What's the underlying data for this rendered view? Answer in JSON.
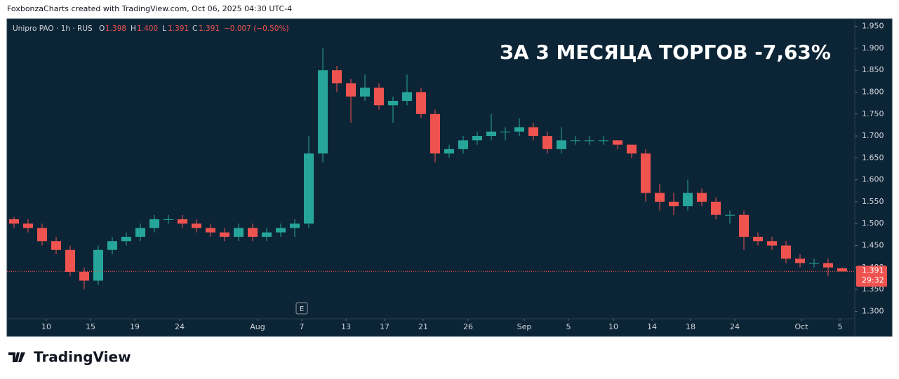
{
  "attribution": "FoxbonzaCharts created with TradingView.com, Oct 06, 2025 04:30 UTC-4",
  "legend": {
    "symbol": "Unipro PAO · 1h · RUS",
    "o_label": "O",
    "o": "1.398",
    "h_label": "H",
    "h": "1.400",
    "l_label": "L",
    "l": "1.391",
    "c_label": "C",
    "c": "1.391",
    "change": "−0.007 (−0.50%)"
  },
  "logo": "TradingView",
  "earnings_marker": "E",
  "countdown": "29:32",
  "last_price_label": "1.391",
  "chart_data": {
    "type": "candlestick",
    "annotation": "ЗА 3 МЕСЯЦА ТОРГОВ -7,63%",
    "up_color": "#26a69a",
    "down_color": "#ef5350",
    "open": [
      1.51,
      1.5,
      1.49,
      1.46,
      1.44,
      1.39,
      1.37,
      1.44,
      1.46,
      1.47,
      1.49,
      1.51,
      1.51,
      1.5,
      1.49,
      1.48,
      1.47,
      1.49,
      1.47,
      1.48,
      1.49,
      1.5,
      1.66,
      1.85,
      1.82,
      1.79,
      1.81,
      1.77,
      1.78,
      1.8,
      1.75,
      1.66,
      1.67,
      1.69,
      1.7,
      1.71,
      1.71,
      1.72,
      1.7,
      1.67,
      1.69,
      1.69,
      1.69,
      1.69,
      1.68,
      1.66,
      1.57,
      1.55,
      1.54,
      1.57,
      1.55,
      1.52,
      1.52,
      1.47,
      1.46,
      1.45,
      1.42,
      1.41,
      1.41,
      1.398
    ],
    "high": [
      1.515,
      1.51,
      1.5,
      1.47,
      1.45,
      1.4,
      1.45,
      1.47,
      1.48,
      1.5,
      1.52,
      1.52,
      1.52,
      1.51,
      1.5,
      1.49,
      1.5,
      1.5,
      1.49,
      1.5,
      1.51,
      1.7,
      1.9,
      1.86,
      1.83,
      1.84,
      1.82,
      1.79,
      1.84,
      1.81,
      1.76,
      1.68,
      1.7,
      1.71,
      1.75,
      1.72,
      1.74,
      1.73,
      1.71,
      1.72,
      1.7,
      1.7,
      1.7,
      1.69,
      1.68,
      1.67,
      1.59,
      1.57,
      1.6,
      1.58,
      1.56,
      1.53,
      1.53,
      1.48,
      1.47,
      1.46,
      1.43,
      1.42,
      1.42,
      1.4
    ],
    "low": [
      1.49,
      1.48,
      1.45,
      1.43,
      1.38,
      1.35,
      1.36,
      1.43,
      1.45,
      1.46,
      1.48,
      1.5,
      1.49,
      1.48,
      1.47,
      1.46,
      1.46,
      1.46,
      1.46,
      1.47,
      1.47,
      1.49,
      1.64,
      1.8,
      1.73,
      1.78,
      1.76,
      1.73,
      1.77,
      1.74,
      1.64,
      1.65,
      1.66,
      1.68,
      1.69,
      1.69,
      1.7,
      1.69,
      1.66,
      1.66,
      1.68,
      1.68,
      1.68,
      1.67,
      1.65,
      1.55,
      1.53,
      1.52,
      1.53,
      1.54,
      1.51,
      1.5,
      1.44,
      1.45,
      1.44,
      1.41,
      1.4,
      1.4,
      1.38,
      1.391
    ],
    "close": [
      1.5,
      1.49,
      1.46,
      1.44,
      1.39,
      1.37,
      1.44,
      1.46,
      1.47,
      1.49,
      1.51,
      1.51,
      1.5,
      1.49,
      1.48,
      1.47,
      1.49,
      1.47,
      1.48,
      1.49,
      1.5,
      1.66,
      1.85,
      1.82,
      1.79,
      1.81,
      1.77,
      1.78,
      1.8,
      1.75,
      1.66,
      1.67,
      1.69,
      1.7,
      1.71,
      1.71,
      1.72,
      1.7,
      1.67,
      1.69,
      1.69,
      1.69,
      1.69,
      1.68,
      1.66,
      1.57,
      1.55,
      1.54,
      1.57,
      1.55,
      1.52,
      1.52,
      1.47,
      1.46,
      1.45,
      1.42,
      1.41,
      1.41,
      1.4,
      1.391
    ],
    "xlim": [
      -0.5,
      59.5
    ],
    "xticks": [
      {
        "value": 2.3,
        "label": "10"
      },
      {
        "value": 5.45,
        "label": "15"
      },
      {
        "value": 8.6,
        "label": "19"
      },
      {
        "value": 11.8,
        "label": "24"
      },
      {
        "value": 17.35,
        "label": "Aug"
      },
      {
        "value": 20.5,
        "label": "7"
      },
      {
        "value": 23.65,
        "label": "13"
      },
      {
        "value": 26.4,
        "label": "17"
      },
      {
        "value": 29.15,
        "label": "21"
      },
      {
        "value": 32.35,
        "label": "26"
      },
      {
        "value": 36.35,
        "label": "Sep"
      },
      {
        "value": 39.5,
        "label": "5"
      },
      {
        "value": 42.7,
        "label": "10"
      },
      {
        "value": 45.45,
        "label": "14"
      },
      {
        "value": 48.2,
        "label": "18"
      },
      {
        "value": 51.35,
        "label": "24"
      },
      {
        "value": 56.1,
        "label": "Oct"
      },
      {
        "value": 58.85,
        "label": "5"
      }
    ],
    "ylim": [
      1.283,
      1.967
    ],
    "yticks": [
      {
        "value": 1.3,
        "label": "1.300"
      },
      {
        "value": 1.35,
        "label": "1.350"
      },
      {
        "value": 1.4,
        "label": "1.400"
      },
      {
        "value": 1.45,
        "label": "1.450"
      },
      {
        "value": 1.5,
        "label": "1.500"
      },
      {
        "value": 1.55,
        "label": "1.550"
      },
      {
        "value": 1.6,
        "label": "1.600"
      },
      {
        "value": 1.65,
        "label": "1.650"
      },
      {
        "value": 1.7,
        "label": "1.700"
      },
      {
        "value": 1.75,
        "label": "1.750"
      },
      {
        "value": 1.8,
        "label": "1.800"
      },
      {
        "value": 1.85,
        "label": "1.850"
      },
      {
        "value": 1.9,
        "label": "1.900"
      },
      {
        "value": 1.95,
        "label": "1.950"
      }
    ]
  }
}
